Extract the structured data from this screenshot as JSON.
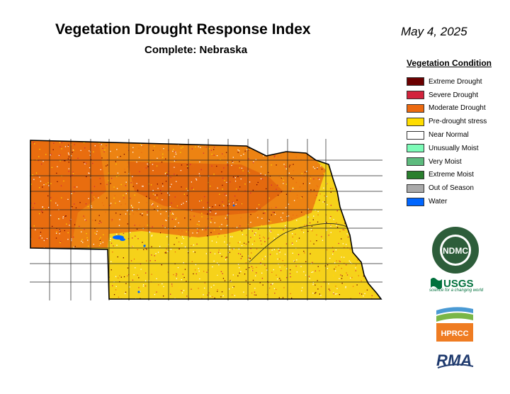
{
  "header": {
    "title": "Vegetation Drought Response Index",
    "subtitle": "Complete: Nebraska",
    "date": "May 4, 2025"
  },
  "legend": {
    "title": "Vegetation Condition",
    "items": [
      {
        "label": "Extreme Drought",
        "color": "#6b0000"
      },
      {
        "label": "Severe Drought",
        "color": "#d2233c"
      },
      {
        "label": "Moderate Drought",
        "color": "#ec6a10"
      },
      {
        "label": "Pre-drought stress",
        "color": "#ffdd00"
      },
      {
        "label": "Near Normal",
        "color": "#ffffff"
      },
      {
        "label": "Unusually Moist",
        "color": "#7dfcb8"
      },
      {
        "label": "Very Moist",
        "color": "#5dbb7e"
      },
      {
        "label": "Extreme Moist",
        "color": "#2a7f2e"
      },
      {
        "label": "Out of Season",
        "color": "#aaaaaa"
      },
      {
        "label": "Water",
        "color": "#0066ff"
      }
    ]
  },
  "logos": {
    "ndmc": {
      "text": "NDMC",
      "ring_text": "NATIONAL DROUGHT MITIGATION CENTER • UNIVERSITY OF NEBRASKA"
    },
    "usgs": {
      "text": "USGS",
      "tagline": "science for a changing world"
    },
    "hprcc": {
      "text": "HPRCC"
    },
    "rma": {
      "text": "RMA"
    }
  }
}
